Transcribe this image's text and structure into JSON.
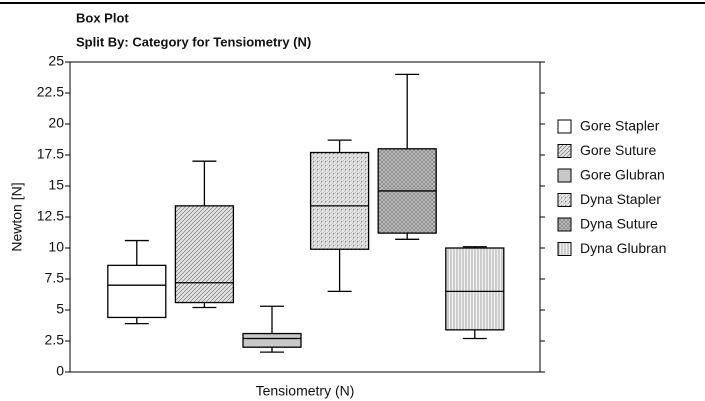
{
  "chart_data": {
    "type": "box",
    "title": "Box Plot",
    "subtitle": "Split By: Category for Tensiometry (N)",
    "ylabel": "Newton [N]",
    "xlabel": "Tensiometry (N)",
    "ylim": [
      0,
      25
    ],
    "yticks": [
      0,
      2.5,
      5,
      7.5,
      10,
      12.5,
      15,
      17.5,
      20,
      22.5,
      25
    ],
    "legend": "right",
    "series": [
      {
        "name": "Gore Stapler",
        "pattern": "none",
        "min": 3.9,
        "q1": 4.4,
        "median": 7.0,
        "q3": 8.6,
        "max": 10.6
      },
      {
        "name": "Gore Suture",
        "pattern": "diagonal",
        "min": 5.2,
        "q1": 5.6,
        "median": 7.2,
        "q3": 13.4,
        "max": 17.0
      },
      {
        "name": "Gore Glubran",
        "pattern": "solid",
        "min": 1.6,
        "q1": 2.0,
        "median": 2.7,
        "q3": 3.1,
        "max": 5.3
      },
      {
        "name": "Dyna Stapler",
        "pattern": "dots",
        "min": 6.5,
        "q1": 9.9,
        "median": 13.4,
        "q3": 17.7,
        "max": 18.7
      },
      {
        "name": "Dyna Suture",
        "pattern": "crosshatch",
        "min": 10.7,
        "q1": 11.2,
        "median": 14.6,
        "q3": 18.0,
        "max": 24.0
      },
      {
        "name": "Dyna Glubran",
        "pattern": "vertical",
        "min": 2.7,
        "q1": 3.4,
        "median": 6.5,
        "q3": 10.0,
        "max": 10.1
      }
    ]
  }
}
